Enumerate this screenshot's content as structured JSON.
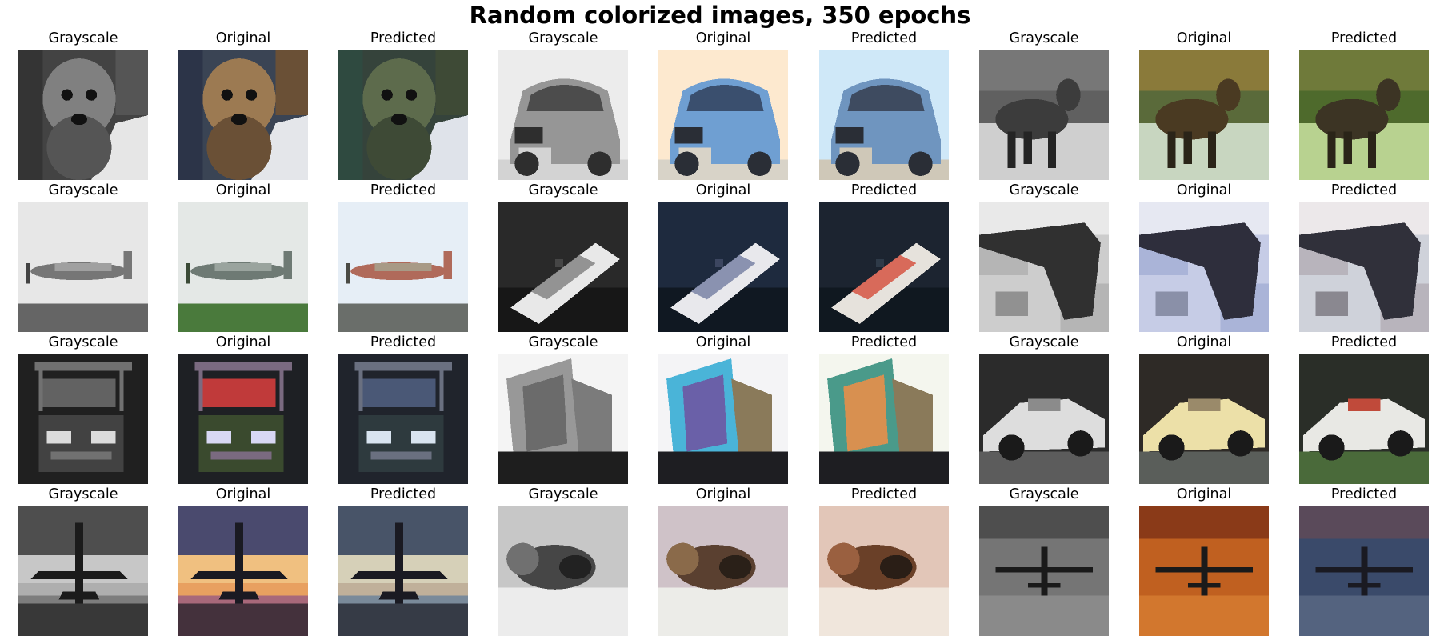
{
  "title": "Random colorized images, 350 epochs",
  "panels": [
    {
      "label": "Grayscale",
      "scene": "dog",
      "mode": "gray"
    },
    {
      "label": "Original",
      "scene": "dog",
      "mode": "orig"
    },
    {
      "label": "Predicted",
      "scene": "dog",
      "mode": "pred"
    },
    {
      "label": "Grayscale",
      "scene": "car",
      "mode": "gray"
    },
    {
      "label": "Original",
      "scene": "car",
      "mode": "orig"
    },
    {
      "label": "Predicted",
      "scene": "car",
      "mode": "pred"
    },
    {
      "label": "Grayscale",
      "scene": "deer",
      "mode": "gray"
    },
    {
      "label": "Original",
      "scene": "deer",
      "mode": "orig"
    },
    {
      "label": "Predicted",
      "scene": "deer",
      "mode": "pred"
    },
    {
      "label": "Grayscale",
      "scene": "airplane_prop",
      "mode": "gray"
    },
    {
      "label": "Original",
      "scene": "airplane_prop",
      "mode": "orig"
    },
    {
      "label": "Predicted",
      "scene": "airplane_prop",
      "mode": "pred"
    },
    {
      "label": "Grayscale",
      "scene": "ship",
      "mode": "gray"
    },
    {
      "label": "Original",
      "scene": "ship",
      "mode": "orig"
    },
    {
      "label": "Predicted",
      "scene": "ship",
      "mode": "pred"
    },
    {
      "label": "Grayscale",
      "scene": "stealth",
      "mode": "gray"
    },
    {
      "label": "Original",
      "scene": "stealth",
      "mode": "orig"
    },
    {
      "label": "Predicted",
      "scene": "stealth",
      "mode": "pred"
    },
    {
      "label": "Grayscale",
      "scene": "truck_front",
      "mode": "gray"
    },
    {
      "label": "Original",
      "scene": "truck_front",
      "mode": "orig"
    },
    {
      "label": "Predicted",
      "scene": "truck_front",
      "mode": "pred"
    },
    {
      "label": "Grayscale",
      "scene": "truck_box",
      "mode": "gray"
    },
    {
      "label": "Original",
      "scene": "truck_box",
      "mode": "orig"
    },
    {
      "label": "Predicted",
      "scene": "truck_box",
      "mode": "pred"
    },
    {
      "label": "Grayscale",
      "scene": "convertible",
      "mode": "gray"
    },
    {
      "label": "Original",
      "scene": "convertible",
      "mode": "orig"
    },
    {
      "label": "Predicted",
      "scene": "convertible",
      "mode": "pred"
    },
    {
      "label": "Grayscale",
      "scene": "jet_sunset",
      "mode": "gray"
    },
    {
      "label": "Original",
      "scene": "jet_sunset",
      "mode": "orig"
    },
    {
      "label": "Predicted",
      "scene": "jet_sunset",
      "mode": "pred"
    },
    {
      "label": "Grayscale",
      "scene": "cat",
      "mode": "gray"
    },
    {
      "label": "Original",
      "scene": "cat",
      "mode": "orig"
    },
    {
      "label": "Predicted",
      "scene": "cat",
      "mode": "pred"
    },
    {
      "label": "Grayscale",
      "scene": "plane_silhouette",
      "mode": "gray"
    },
    {
      "label": "Original",
      "scene": "plane_silhouette",
      "mode": "orig"
    },
    {
      "label": "Predicted",
      "scene": "plane_silhouette",
      "mode": "pred"
    }
  ],
  "scenes": {
    "dog": {
      "orig": {
        "bg": "#3a4454",
        "a": "#9c7a52",
        "b": "#e4e6ea",
        "c": "#6a5036",
        "d": "#2c3448"
      },
      "pred": {
        "bg": "#35433b",
        "a": "#5d6b4c",
        "b": "#dfe3ea",
        "c": "#3e4a36",
        "d": "#2f4a40"
      }
    },
    "car": {
      "orig": {
        "bg": "#fde9cf",
        "a": "#6f9fd2",
        "b": "#3a4f6e",
        "c": "#d8d3c8",
        "d": "#2a2e36"
      },
      "pred": {
        "bg": "#cfe8f8",
        "a": "#6f95bf",
        "b": "#3e4b60",
        "c": "#cfc8b8",
        "d": "#2a2e36"
      }
    },
    "deer": {
      "orig": {
        "bg": "#5a6a3a",
        "a": "#4a3a22",
        "b": "#c8d6c0",
        "c": "#8a7a3a",
        "d": "#2a2418"
      },
      "pred": {
        "bg": "#4e6a2c",
        "a": "#3c3424",
        "b": "#b8d290",
        "c": "#6f7a3a",
        "d": "#2a2418"
      }
    },
    "airplane_prop": {
      "orig": {
        "bg": "#e4e8e6",
        "a": "#6e7a74",
        "b": "#4a7a3c",
        "c": "#9aa49e",
        "d": "#3a4a36"
      },
      "pred": {
        "bg": "#e6eef6",
        "a": "#b06a5a",
        "b": "#6a6e6a",
        "c": "#a89a86",
        "d": "#4a4a44"
      }
    },
    "ship": {
      "orig": {
        "bg": "#1e2a3e",
        "a": "#e8e8ec",
        "b": "#3c4660",
        "c": "#8a92b0",
        "d": "#101822"
      },
      "pred": {
        "bg": "#1c2430",
        "a": "#e6e2dc",
        "b": "#2e3a48",
        "c": "#d86a5a",
        "d": "#101820"
      }
    },
    "stealth": {
      "orig": {
        "bg": "#c6cce6",
        "a": "#2e2e3c",
        "b": "#aab4d8",
        "c": "#8a90a8",
        "d": "#e6e8f2"
      },
      "pred": {
        "bg": "#cfd2da",
        "a": "#30303a",
        "b": "#b8b4bc",
        "c": "#8a8890",
        "d": "#ece8ea"
      }
    },
    "truck_front": {
      "orig": {
        "bg": "#1e2024",
        "a": "#7a6a80",
        "b": "#c03a3a",
        "c": "#d8d8f4",
        "d": "#3a4a2e"
      },
      "pred": {
        "bg": "#20242c",
        "a": "#6a7080",
        "b": "#4a5876",
        "c": "#d8e4f0",
        "d": "#2e3a3e"
      }
    },
    "truck_box": {
      "orig": {
        "bg": "#f4f4f6",
        "a": "#6a60a8",
        "b": "#4ab4d8",
        "c": "#8a7a5a",
        "d": "#1e1e22"
      },
      "pred": {
        "bg": "#f4f6ee",
        "a": "#d89050",
        "b": "#4a9a8a",
        "c": "#8a7a5a",
        "d": "#1e1e22"
      }
    },
    "convertible": {
      "orig": {
        "bg": "#2e2a26",
        "a": "#ece0a8",
        "b": "#5a5e5a",
        "c": "#1a1a1a",
        "d": "#9a8a6a"
      },
      "pred": {
        "bg": "#2a2e28",
        "a": "#e8e8e4",
        "b": "#4a6a3a",
        "c": "#1a1a1a",
        "d": "#c04a3a"
      }
    },
    "jet_sunset": {
      "orig": {
        "bg": "#4a4a6e",
        "a": "#f0c080",
        "b": "#a8687a",
        "c": "#1a1a22",
        "d": "#e8a060"
      },
      "pred": {
        "bg": "#485468",
        "a": "#d6d0b8",
        "b": "#7a8a9a",
        "c": "#1a1a22",
        "d": "#c0b09a"
      }
    },
    "cat": {
      "orig": {
        "bg": "#cfc2c8",
        "a": "#5a4030",
        "b": "#ecece8",
        "c": "#8a6a4a",
        "d": "#2a2018"
      },
      "pred": {
        "bg": "#e2c6b8",
        "a": "#6a4028",
        "b": "#f0e6dc",
        "c": "#9a6040",
        "d": "#2a1e16"
      }
    },
    "plane_silhouette": {
      "orig": {
        "bg": "#c06020",
        "a": "#1a1a1a",
        "b": "#e08a3a",
        "c": "#3a2a22",
        "d": "#8a3a18"
      },
      "pred": {
        "bg": "#3a4a6a",
        "a": "#1a1a22",
        "b": "#6a7890",
        "c": "#2a3040",
        "d": "#5a4a5a"
      }
    }
  }
}
